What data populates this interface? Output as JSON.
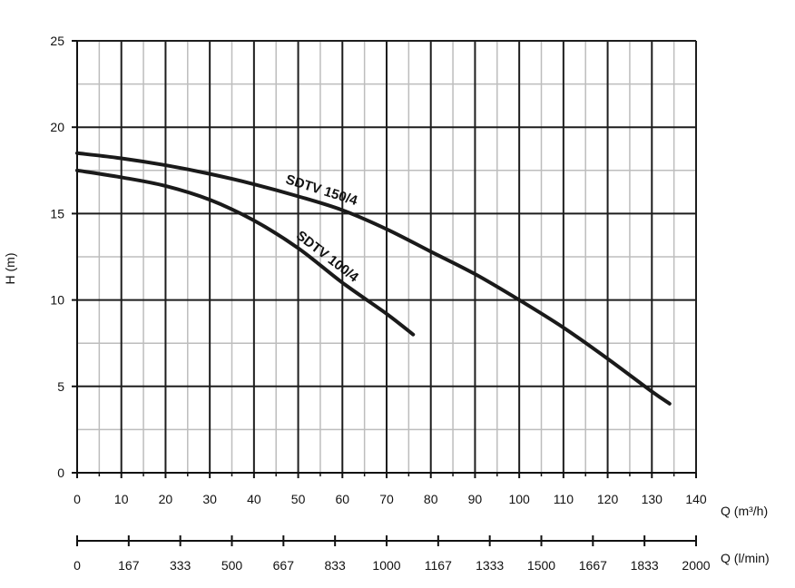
{
  "chart_data": {
    "type": "line",
    "ylabel": "H (m)",
    "xlabel": "Q (m³/h)",
    "xlabel_secondary": "Q (l/min)",
    "xlim": [
      0,
      140
    ],
    "ylim": [
      0,
      25
    ],
    "grid": true,
    "x_major_ticks": [
      0,
      10,
      20,
      30,
      40,
      50,
      60,
      70,
      80,
      90,
      100,
      110,
      120,
      130,
      140
    ],
    "y_major_ticks": [
      0,
      5,
      10,
      15,
      20,
      25
    ],
    "secondary_ticks": [
      "0",
      "167",
      "333",
      "500",
      "667",
      "833",
      "1000",
      "1167",
      "1333",
      "1500",
      "1667",
      "1833",
      "2000"
    ],
    "series": [
      {
        "name": "SDTV 150/4",
        "color": "#1a1a1a",
        "x": [
          0,
          10,
          20,
          30,
          40,
          50,
          60,
          70,
          80,
          90,
          100,
          110,
          120,
          130,
          134
        ],
        "y": [
          18.5,
          18.2,
          17.8,
          17.3,
          16.7,
          16.0,
          15.2,
          14.1,
          12.8,
          11.5,
          10.0,
          8.4,
          6.6,
          4.7,
          4.0
        ]
      },
      {
        "name": "SDTV 100/4",
        "color": "#1a1a1a",
        "x": [
          0,
          10,
          20,
          30,
          40,
          50,
          60,
          70,
          76
        ],
        "y": [
          17.5,
          17.1,
          16.6,
          15.8,
          14.6,
          13.0,
          11.0,
          9.2,
          8.0
        ]
      }
    ]
  }
}
